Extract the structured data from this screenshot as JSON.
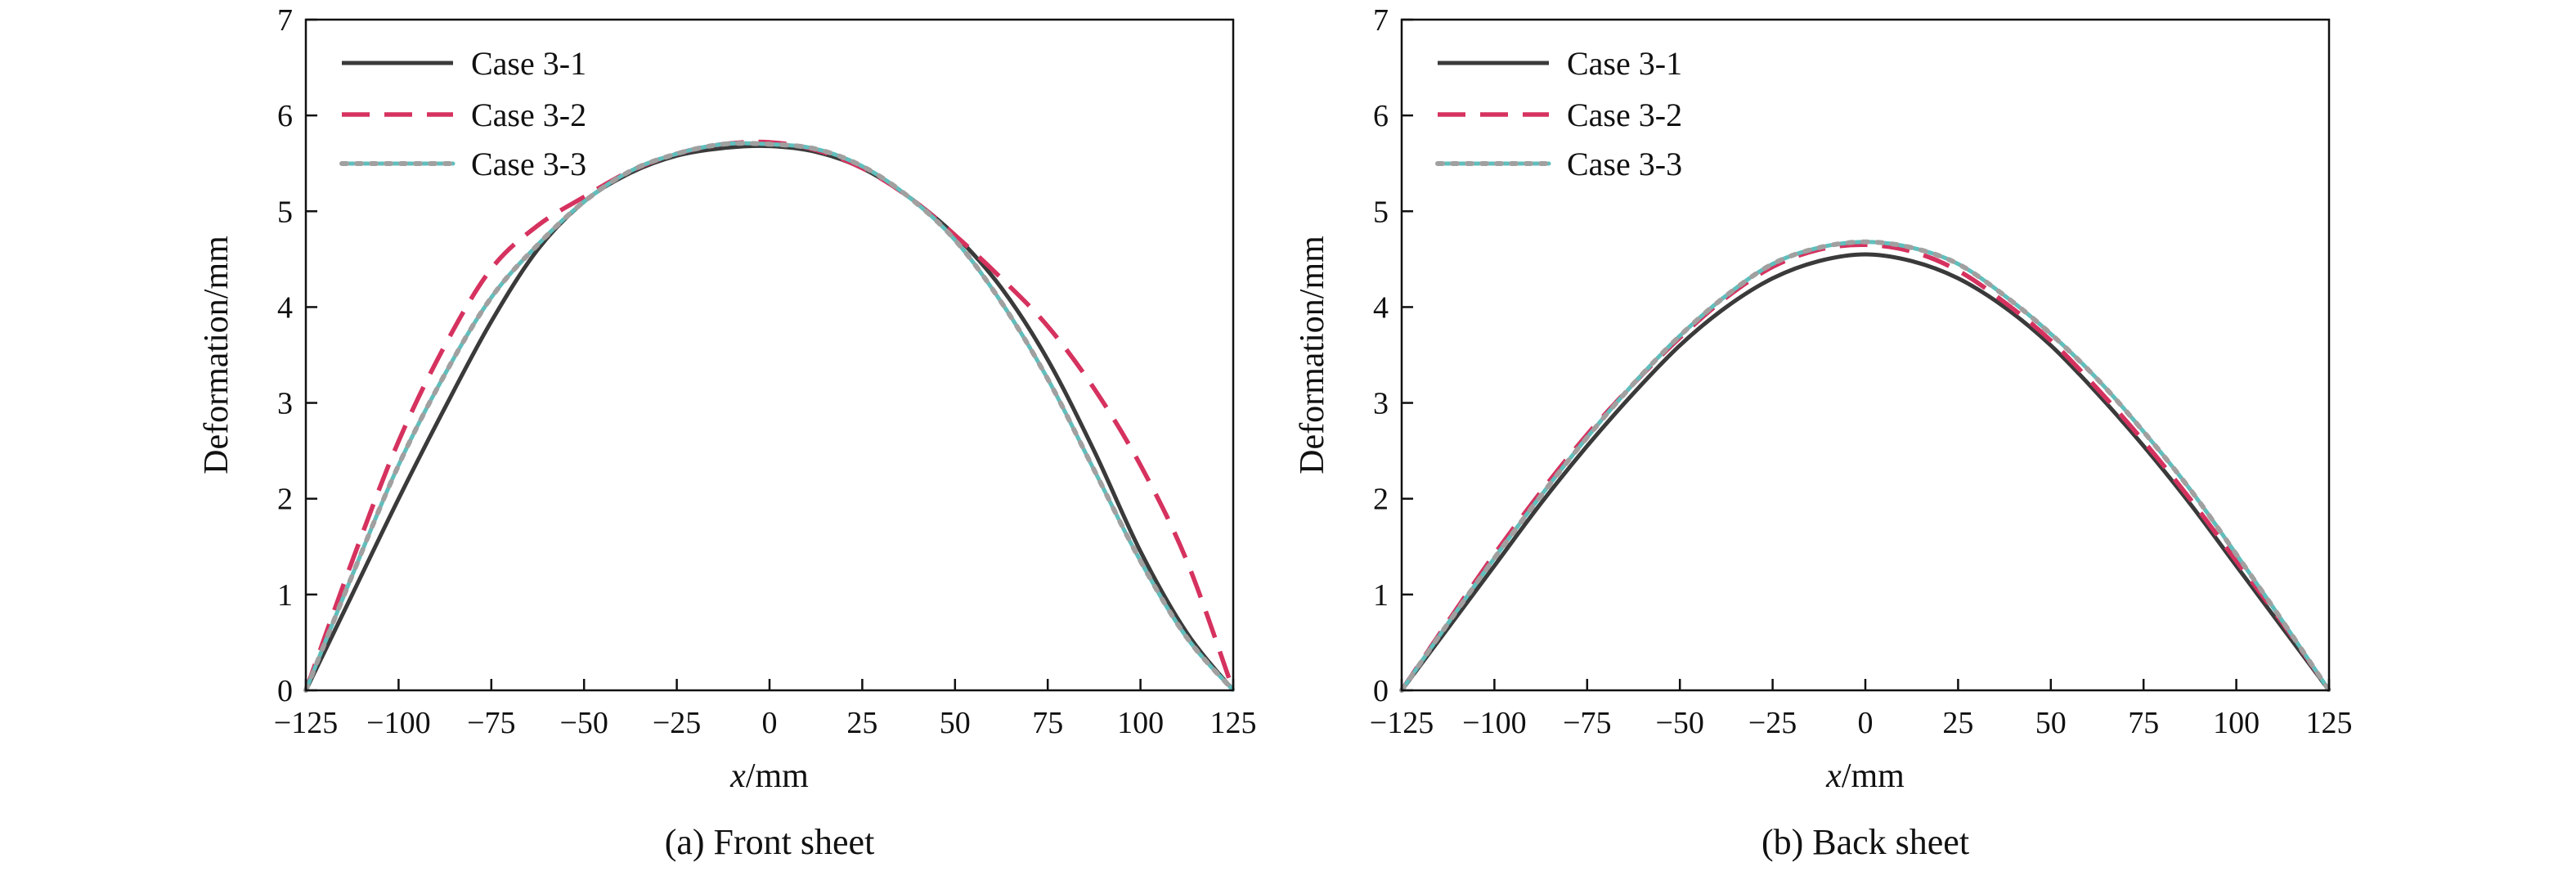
{
  "colors": {
    "case_3_1": "#3a3a3a",
    "case_3_2": "#d6325f",
    "case_3_3_teal": "#5fbfbd",
    "case_3_3_gray": "#a0a0a0",
    "axes": "#111111"
  },
  "chart_data": [
    {
      "type": "line",
      "caption": "(a) Front sheet",
      "xlabel_italic": "x",
      "xlabel_unit": "/mm",
      "ylabel": "Deformation/mm",
      "xlim": [
        -125,
        125
      ],
      "ylim": [
        0,
        7
      ],
      "xticks": [
        -125,
        -100,
        -75,
        -50,
        -25,
        0,
        25,
        50,
        75,
        100,
        125
      ],
      "xtick_labels": [
        "−125",
        "−100",
        "−75",
        "−50",
        "−25",
        "0",
        "25",
        "50",
        "75",
        "100",
        "125"
      ],
      "yticks": [
        0,
        1,
        2,
        3,
        4,
        5,
        6,
        7
      ],
      "ytick_labels": [
        "0",
        "1",
        "2",
        "3",
        "4",
        "5",
        "6",
        "7"
      ],
      "grid": false,
      "legend_position": "top-left",
      "series": [
        {
          "name": "Case 3-1",
          "style": "solid",
          "x": [
            -125,
            -112.5,
            -100,
            -87.5,
            -75,
            -62.5,
            -50,
            -37.5,
            -25,
            -12.5,
            0,
            12.5,
            25,
            37.5,
            50,
            62.5,
            75,
            87.5,
            100,
            112.5,
            125
          ],
          "y": [
            0,
            1.0,
            2.0,
            2.95,
            3.85,
            4.6,
            5.1,
            5.4,
            5.58,
            5.66,
            5.68,
            5.62,
            5.45,
            5.15,
            4.75,
            4.2,
            3.45,
            2.5,
            1.45,
            0.6,
            0
          ]
        },
        {
          "name": "Case 3-2",
          "style": "dashed",
          "x": [
            -125,
            -112.5,
            -100,
            -87.5,
            -75,
            -62.5,
            -50,
            -37.5,
            -25,
            -12.5,
            0,
            12.5,
            25,
            37.5,
            50,
            62.5,
            75,
            87.5,
            100,
            112.5,
            125
          ],
          "y": [
            0,
            1.35,
            2.6,
            3.6,
            4.4,
            4.85,
            5.15,
            5.42,
            5.6,
            5.7,
            5.72,
            5.64,
            5.45,
            5.15,
            4.75,
            4.3,
            3.8,
            3.15,
            2.35,
            1.35,
            0
          ]
        },
        {
          "name": "Case 3-3",
          "style": "dotted",
          "x": [
            -125,
            -112.5,
            -100,
            -87.5,
            -75,
            -62.5,
            -50,
            -37.5,
            -25,
            -12.5,
            0,
            12.5,
            25,
            37.5,
            50,
            62.5,
            75,
            87.5,
            100,
            112.5,
            125
          ],
          "y": [
            0,
            1.2,
            2.35,
            3.3,
            4.1,
            4.65,
            5.1,
            5.42,
            5.6,
            5.7,
            5.7,
            5.65,
            5.47,
            5.15,
            4.7,
            4.05,
            3.25,
            2.3,
            1.35,
            0.55,
            0
          ]
        }
      ]
    },
    {
      "type": "line",
      "caption": "(b) Back sheet",
      "xlabel_italic": "x",
      "xlabel_unit": "/mm",
      "ylabel": "Deformation/mm",
      "xlim": [
        -125,
        125
      ],
      "ylim": [
        0,
        7
      ],
      "xticks": [
        -125,
        -100,
        -75,
        -50,
        -25,
        0,
        25,
        50,
        75,
        100,
        125
      ],
      "xtick_labels": [
        "−125",
        "−100",
        "−75",
        "−50",
        "−25",
        "0",
        "25",
        "50",
        "75",
        "100",
        "125"
      ],
      "yticks": [
        0,
        1,
        2,
        3,
        4,
        5,
        6,
        7
      ],
      "ytick_labels": [
        "0",
        "1",
        "2",
        "3",
        "4",
        "5",
        "6",
        "7"
      ],
      "grid": false,
      "legend_position": "top-left",
      "series": [
        {
          "name": "Case 3-1",
          "style": "solid",
          "x": [
            -125,
            -112.5,
            -100,
            -87.5,
            -75,
            -62.5,
            -50,
            -37.5,
            -25,
            -12.5,
            0,
            12.5,
            25,
            37.5,
            50,
            62.5,
            75,
            87.5,
            100,
            112.5,
            125
          ],
          "y": [
            0,
            0.65,
            1.3,
            1.95,
            2.55,
            3.1,
            3.6,
            4.0,
            4.3,
            4.48,
            4.55,
            4.48,
            4.3,
            4.0,
            3.6,
            3.1,
            2.55,
            1.95,
            1.3,
            0.65,
            0
          ]
        },
        {
          "name": "Case 3-2",
          "style": "dashed",
          "x": [
            -125,
            -112.5,
            -100,
            -87.5,
            -75,
            -62.5,
            -50,
            -37.5,
            -25,
            -12.5,
            0,
            12.5,
            25,
            37.5,
            50,
            62.5,
            75,
            87.5,
            100,
            112.5,
            125
          ],
          "y": [
            0,
            0.72,
            1.42,
            2.07,
            2.67,
            3.2,
            3.68,
            4.1,
            4.42,
            4.6,
            4.65,
            4.58,
            4.38,
            4.05,
            3.65,
            3.15,
            2.6,
            2.0,
            1.35,
            0.7,
            0
          ]
        },
        {
          "name": "Case 3-3",
          "style": "dotted",
          "x": [
            -125,
            -112.5,
            -100,
            -87.5,
            -75,
            -62.5,
            -50,
            -37.5,
            -25,
            -12.5,
            0,
            12.5,
            25,
            37.5,
            50,
            62.5,
            75,
            87.5,
            100,
            112.5,
            125
          ],
          "y": [
            0,
            0.7,
            1.38,
            2.03,
            2.64,
            3.2,
            3.7,
            4.12,
            4.45,
            4.62,
            4.68,
            4.62,
            4.45,
            4.12,
            3.72,
            3.25,
            2.7,
            2.1,
            1.42,
            0.72,
            0
          ]
        }
      ]
    }
  ]
}
